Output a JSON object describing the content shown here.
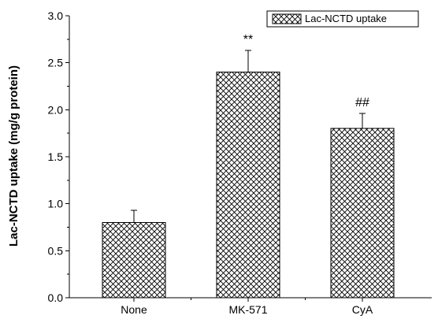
{
  "chart_data": {
    "type": "bar",
    "title": "",
    "xlabel": "",
    "ylabel": "Lac-NCTD uptake (mg/g protein)",
    "categories": [
      "None",
      "MK-571",
      "CyA"
    ],
    "series": [
      {
        "name": "Lac-NCTD uptake",
        "values": [
          0.8,
          2.4,
          1.8
        ],
        "errors": [
          0.13,
          0.23,
          0.16
        ],
        "fill": "crosshatch",
        "color": "#000000"
      }
    ],
    "annotations": [
      "",
      "**",
      "##"
    ],
    "ylim": [
      0.0,
      3.0
    ],
    "yticks": [
      0.0,
      0.5,
      1.0,
      1.5,
      2.0,
      2.5,
      3.0
    ],
    "ytick_labels": [
      "0.0",
      "0.5",
      "1.0",
      "1.5",
      "2.0",
      "2.5",
      "3.0"
    ],
    "grid": false,
    "legend": {
      "position": "top-right",
      "entries": [
        "Lac-NCTD uptake"
      ]
    }
  }
}
